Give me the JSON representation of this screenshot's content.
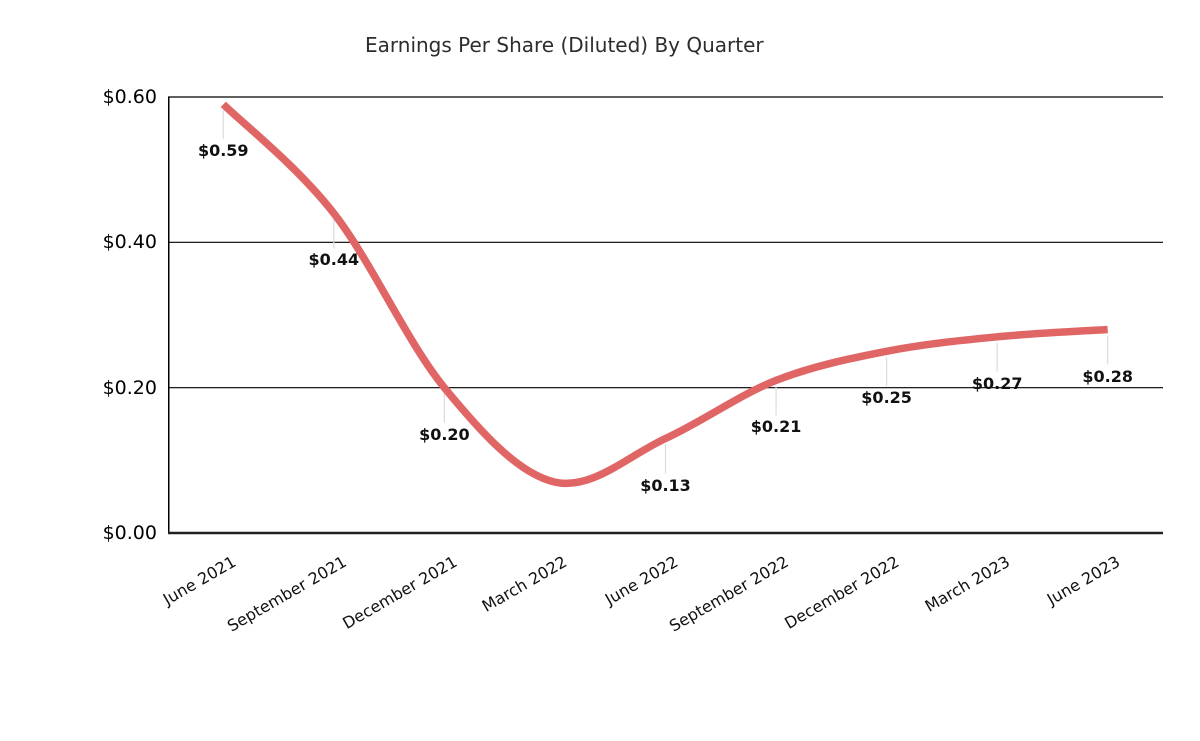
{
  "page": {
    "background": "#ffffff"
  },
  "chart_data": {
    "type": "line",
    "title": "Earnings Per Share (Diluted) By Quarter",
    "categories": [
      "June 2021",
      "September 2021",
      "December 2021",
      "March 2022",
      "June 2022",
      "September 2022",
      "December 2022",
      "March 2023",
      "June 2023"
    ],
    "series": [
      {
        "name": "Earnings Per Share (Diluted)",
        "values": [
          0.59,
          0.44,
          0.2,
          0.07,
          0.13,
          0.21,
          0.25,
          0.27,
          0.28
        ],
        "point_labels": [
          "$0.59",
          "$0.44",
          "$0.20",
          null,
          "$0.13",
          "$0.21",
          "$0.25",
          "$0.27",
          "$0.28"
        ],
        "color": "#e06666"
      }
    ],
    "y_axis": {
      "range": [
        0,
        0.6
      ],
      "ticks": [
        {
          "label": "$0.00",
          "value": 0.0
        },
        {
          "label": "$0.20",
          "value": 0.2
        },
        {
          "label": "$0.40",
          "value": 0.4
        },
        {
          "label": "$0.60",
          "value": 0.6
        }
      ]
    },
    "x_label_rotation_deg": -30,
    "grid": "horizontal",
    "legend": "none",
    "smooth": true,
    "xlabel": "",
    "ylabel": ""
  },
  "style": {
    "line_color": "#e06666",
    "line_width": 7.5,
    "gridline_color": "#000000",
    "bottom_axis_color": "#212121",
    "left_axis_color": "#000000",
    "leader_line_color": "#dcdcdc",
    "title_color": "#2d2d2d",
    "tick_label_color": "#000000",
    "data_label_color": "#111111",
    "background": "#ffffff"
  }
}
